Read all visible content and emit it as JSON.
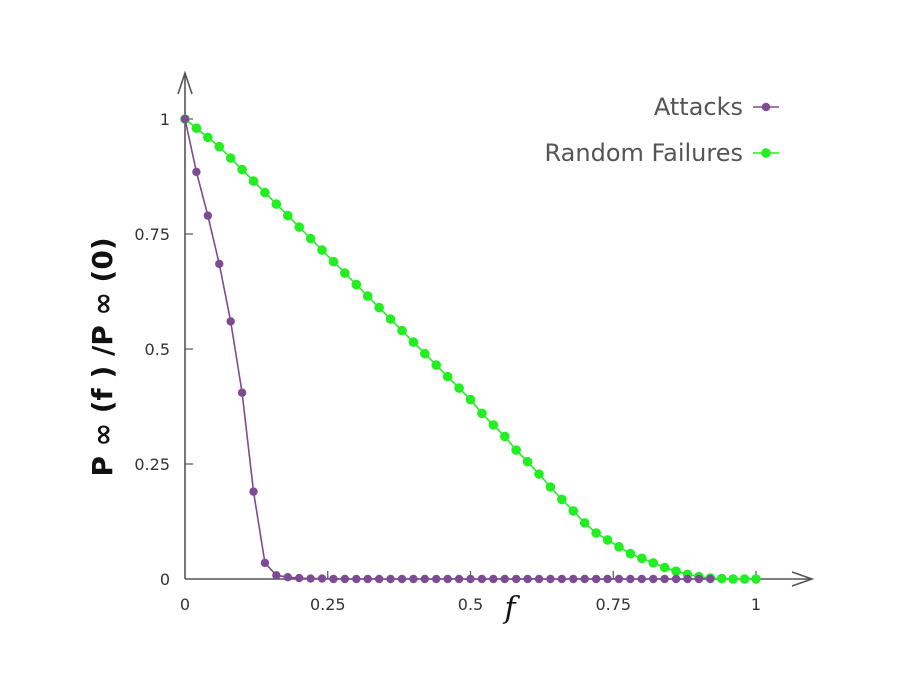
{
  "chart_data": {
    "type": "line",
    "xlabel": "f",
    "ylabel": "P ∞ (f ) /P ∞ (0)",
    "xlim": [
      0,
      1
    ],
    "ylim": [
      0,
      1
    ],
    "xticks": [
      "0",
      "0.25",
      "0.5",
      "0.75",
      "1"
    ],
    "yticks": [
      "0",
      "0.25",
      "0.5",
      "0.75",
      "1"
    ],
    "grid": false,
    "legend_position": "top-right",
    "series": [
      {
        "name": "Attacks",
        "color": "#7f4a94",
        "x": [
          0,
          0.02,
          0.04,
          0.06,
          0.08,
          0.1,
          0.12,
          0.14,
          0.16,
          0.18,
          0.2,
          0.22,
          0.24,
          0.26,
          0.28,
          0.3,
          0.32,
          0.34,
          0.36,
          0.38,
          0.4,
          0.42,
          0.44,
          0.46,
          0.48,
          0.5,
          0.52,
          0.54,
          0.56,
          0.58,
          0.6,
          0.62,
          0.64,
          0.66,
          0.68,
          0.7,
          0.72,
          0.74,
          0.76,
          0.78,
          0.8,
          0.82,
          0.84,
          0.86,
          0.88,
          0.9,
          0.92
        ],
        "y": [
          1.0,
          0.885,
          0.79,
          0.685,
          0.56,
          0.405,
          0.19,
          0.035,
          0.008,
          0.004,
          0.002,
          0.001,
          0.001,
          0,
          0,
          0,
          0,
          0,
          0,
          0,
          0,
          0,
          0,
          0,
          0,
          0,
          0,
          0,
          0,
          0,
          0,
          0,
          0,
          0,
          0,
          0,
          0,
          0,
          0,
          0,
          0,
          0,
          0,
          0,
          0,
          0,
          0
        ]
      },
      {
        "name": "Random Failures",
        "color": "#22ee22",
        "x": [
          0,
          0.02,
          0.04,
          0.06,
          0.08,
          0.1,
          0.12,
          0.14,
          0.16,
          0.18,
          0.2,
          0.22,
          0.24,
          0.26,
          0.28,
          0.3,
          0.32,
          0.34,
          0.36,
          0.38,
          0.4,
          0.42,
          0.44,
          0.46,
          0.48,
          0.5,
          0.52,
          0.54,
          0.56,
          0.58,
          0.6,
          0.62,
          0.64,
          0.66,
          0.68,
          0.7,
          0.72,
          0.74,
          0.76,
          0.78,
          0.8,
          0.82,
          0.84,
          0.86,
          0.88,
          0.9,
          0.92,
          0.94,
          0.96,
          0.98,
          1.0
        ],
        "y": [
          1.0,
          0.98,
          0.96,
          0.94,
          0.915,
          0.89,
          0.865,
          0.84,
          0.815,
          0.79,
          0.765,
          0.74,
          0.715,
          0.69,
          0.665,
          0.64,
          0.615,
          0.59,
          0.565,
          0.54,
          0.515,
          0.49,
          0.465,
          0.44,
          0.415,
          0.39,
          0.36,
          0.335,
          0.31,
          0.28,
          0.255,
          0.228,
          0.2,
          0.173,
          0.148,
          0.122,
          0.1,
          0.085,
          0.07,
          0.055,
          0.045,
          0.035,
          0.025,
          0.017,
          0.01,
          0.005,
          0.002,
          0.001,
          0,
          0,
          0
        ]
      }
    ]
  }
}
